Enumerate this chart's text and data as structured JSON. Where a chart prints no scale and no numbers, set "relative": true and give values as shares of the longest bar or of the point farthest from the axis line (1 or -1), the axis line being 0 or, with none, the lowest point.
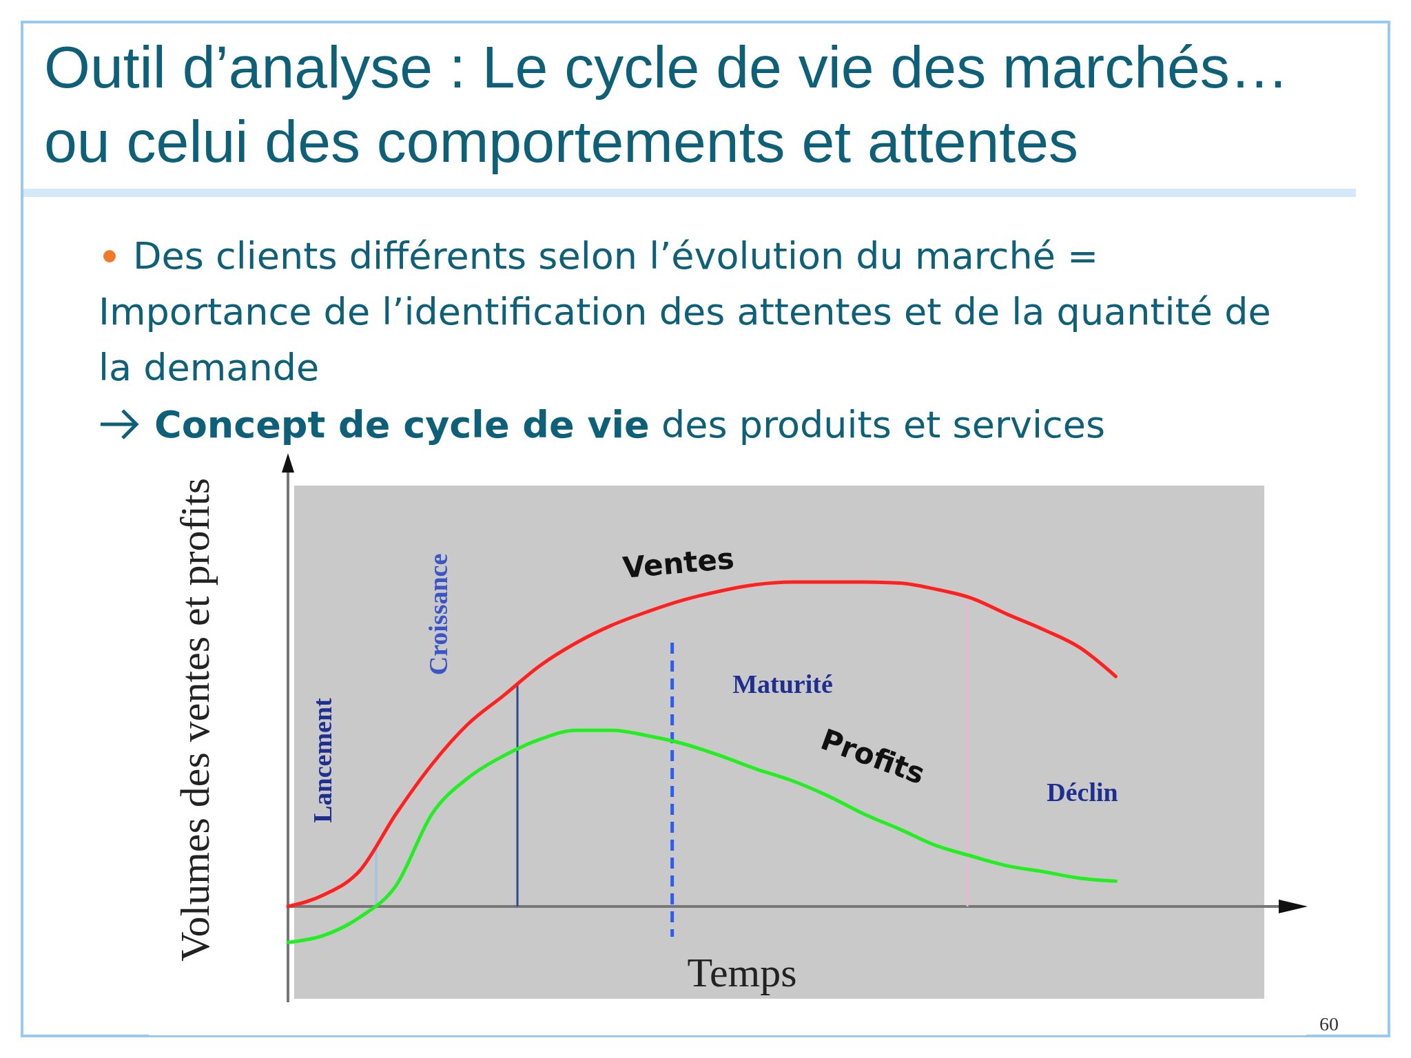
{
  "chart_data": {
    "type": "line",
    "relative": true,
    "title": "Outil d’analyse : Le cycle de vie des marchés… ou celui des comportements et attentes",
    "subtitle": "Des clients différents selon l’évolution du marché = Importance de l’identification des attentes et de la quantité de la demande",
    "xlabel": "Temps",
    "ylabel": "Volumes des ventes et profits",
    "categories": [
      null,
      null,
      null,
      null,
      null,
      null,
      null,
      null,
      null,
      null,
      null,
      null,
      null,
      null,
      null,
      null,
      null,
      null,
      null,
      null,
      null,
      null,
      null,
      null
    ],
    "series": [
      {
        "name": "Ventes",
        "color": "#ff2020",
        "values": [
          0,
          0.036,
          0.111,
          0.285,
          0.438,
          0.562,
          0.651,
          0.742,
          0.812,
          0.867,
          0.909,
          0.945,
          0.972,
          0.992,
          1,
          1,
          1,
          0.997,
          0.978,
          0.95,
          0.9,
          0.853,
          0.798,
          0.709
        ]
      },
      {
        "name": "Profits",
        "color": "#22ee22",
        "values": [
          -0.111,
          -0.089,
          -0.033,
          0.064,
          0.285,
          0.396,
          0.465,
          0.515,
          0.543,
          0.543,
          0.526,
          0.501,
          0.465,
          0.424,
          0.388,
          0.341,
          0.285,
          0.238,
          0.188,
          0.155,
          0.125,
          0.107,
          0.087,
          0.078
        ]
      }
    ],
    "annotations": [
      "Concept de cycle de vie",
      "des produits et services",
      "Lancement",
      "Croissance",
      "Maturité",
      "Déclin",
      "60"
    ]
  }
}
